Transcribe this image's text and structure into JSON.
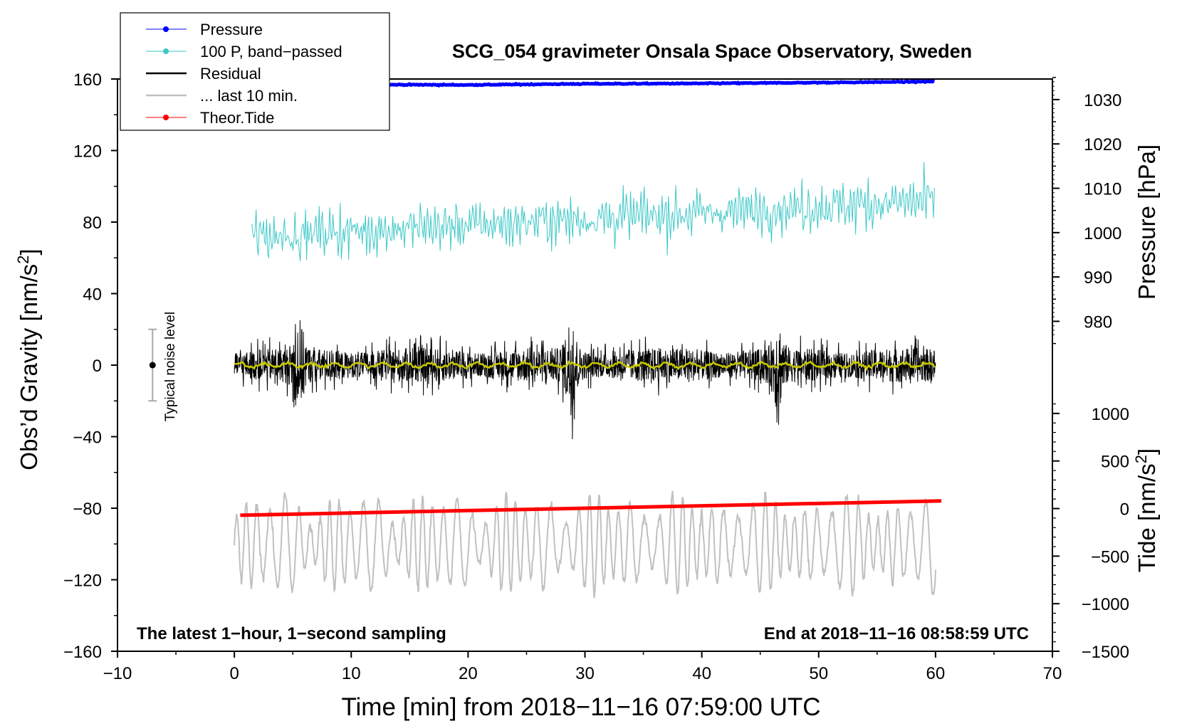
{
  "chart_data": {
    "type": "line",
    "title": "SCG_054 gravimeter Onsala Space Observatory, Sweden",
    "xlabel": "Time [min] from 2018−11−16 07:59:00 UTC",
    "ylabel": "Obs’d Gravity [nm/s²]",
    "ylabel_text": "Obs’d Gravity [nm/s",
    "ylabel_sup": "2",
    "ylabel_end": "]",
    "xlim": [
      -10,
      70
    ],
    "ylim": [
      -160,
      160
    ],
    "x_ticks": [
      -10,
      0,
      10,
      20,
      30,
      40,
      50,
      60,
      70
    ],
    "x_tick_labels": [
      "−10",
      "0",
      "10",
      "20",
      "30",
      "40",
      "50",
      "60",
      "70"
    ],
    "y_ticks": [
      -160,
      -120,
      -80,
      -40,
      0,
      40,
      80,
      120,
      160
    ],
    "y_tick_labels": [
      "−160",
      "−120",
      "−80",
      "−40",
      "0",
      "40",
      "80",
      "120",
      "160"
    ],
    "right_axis_pressure": {
      "label": "Pressure [hPa]",
      "ticks": [
        980,
        990,
        1000,
        1010,
        1020,
        1030
      ],
      "tick_labels": [
        "980",
        "990",
        "1000",
        "1010",
        "1020",
        "1030"
      ],
      "maps_to_left": [
        [
          980,
          24.5
        ],
        [
          1030,
          148.5
        ]
      ]
    },
    "right_axis_tide": {
      "label": "Tide [nm/s²]",
      "label_text": "Tide [nm/s",
      "label_sup": "2",
      "label_end": "]",
      "ticks": [
        -1500,
        -1000,
        -500,
        0,
        500,
        1000
      ],
      "tick_labels": [
        "−1500",
        "−1000",
        "−500",
        "0",
        "500",
        "1000"
      ],
      "maps_to_left": [
        [
          -1500,
          -160
        ],
        [
          1000,
          -27
        ]
      ]
    },
    "series": [
      {
        "name": "Pressure",
        "color": "#0000ff",
        "marker": true,
        "x": [
          0,
          10,
          20,
          30,
          40,
          50,
          60
        ],
        "y_left_units": [
          156.5,
          156.9,
          156.7,
          157.3,
          157.5,
          158.0,
          158.6
        ]
      },
      {
        "name": "100 P, band−passed",
        "color": "#3ec8c8",
        "marker": true,
        "x_range": [
          1.5,
          60
        ],
        "trend_left_units": [
          72,
          92
        ],
        "amplitude_left_units": 14
      },
      {
        "name": "Residual",
        "color": "#000000",
        "marker": false,
        "x_range": [
          0,
          60
        ],
        "center_left_units": 0,
        "amplitude_left_units": 22,
        "spikes": [
          {
            "x": 5.5,
            "amp": 52
          },
          {
            "x": 28.8,
            "amp": 55
          },
          {
            "x": 46.5,
            "amp": 50
          }
        ]
      },
      {
        "name": "... last 10 min.",
        "color": "#c0c0c0",
        "marker": false,
        "x_range": [
          0,
          60
        ],
        "center_left_units": -100,
        "amplitude_left_units": 20
      },
      {
        "name": "Theor.Tide",
        "color": "#ff0000",
        "marker": true,
        "x": [
          0.5,
          60.5
        ],
        "y_tide_units": [
          -70,
          80
        ]
      },
      {
        "name": "smoothed residual",
        "color": "#c8c800",
        "marker": false,
        "x_range": [
          0,
          60
        ],
        "center_left_units": 0,
        "amplitude_left_units": 2
      }
    ],
    "noise_bar": {
      "label": "Typical noise level",
      "x": -7,
      "y": 0,
      "range": [
        -20,
        20
      ]
    },
    "legend": {
      "placement": "top-left",
      "entries": [
        {
          "label": "Pressure",
          "color": "#0000ff",
          "marker": true
        },
        {
          "label": "100 P, band−passed",
          "color": "#3ec8c8",
          "marker": true
        },
        {
          "label": "Residual",
          "color": "#000000",
          "marker": false
        },
        {
          "label": "... last 10 min.",
          "color": "#c0c0c0",
          "marker": false
        },
        {
          "label": "Theor.Tide",
          "color": "#ff0000",
          "marker": true
        }
      ]
    },
    "annotations": {
      "bottom_left": "The latest 1−hour, 1−second sampling",
      "bottom_right": "End at 2018−11−16 08:58:59 UTC"
    }
  }
}
